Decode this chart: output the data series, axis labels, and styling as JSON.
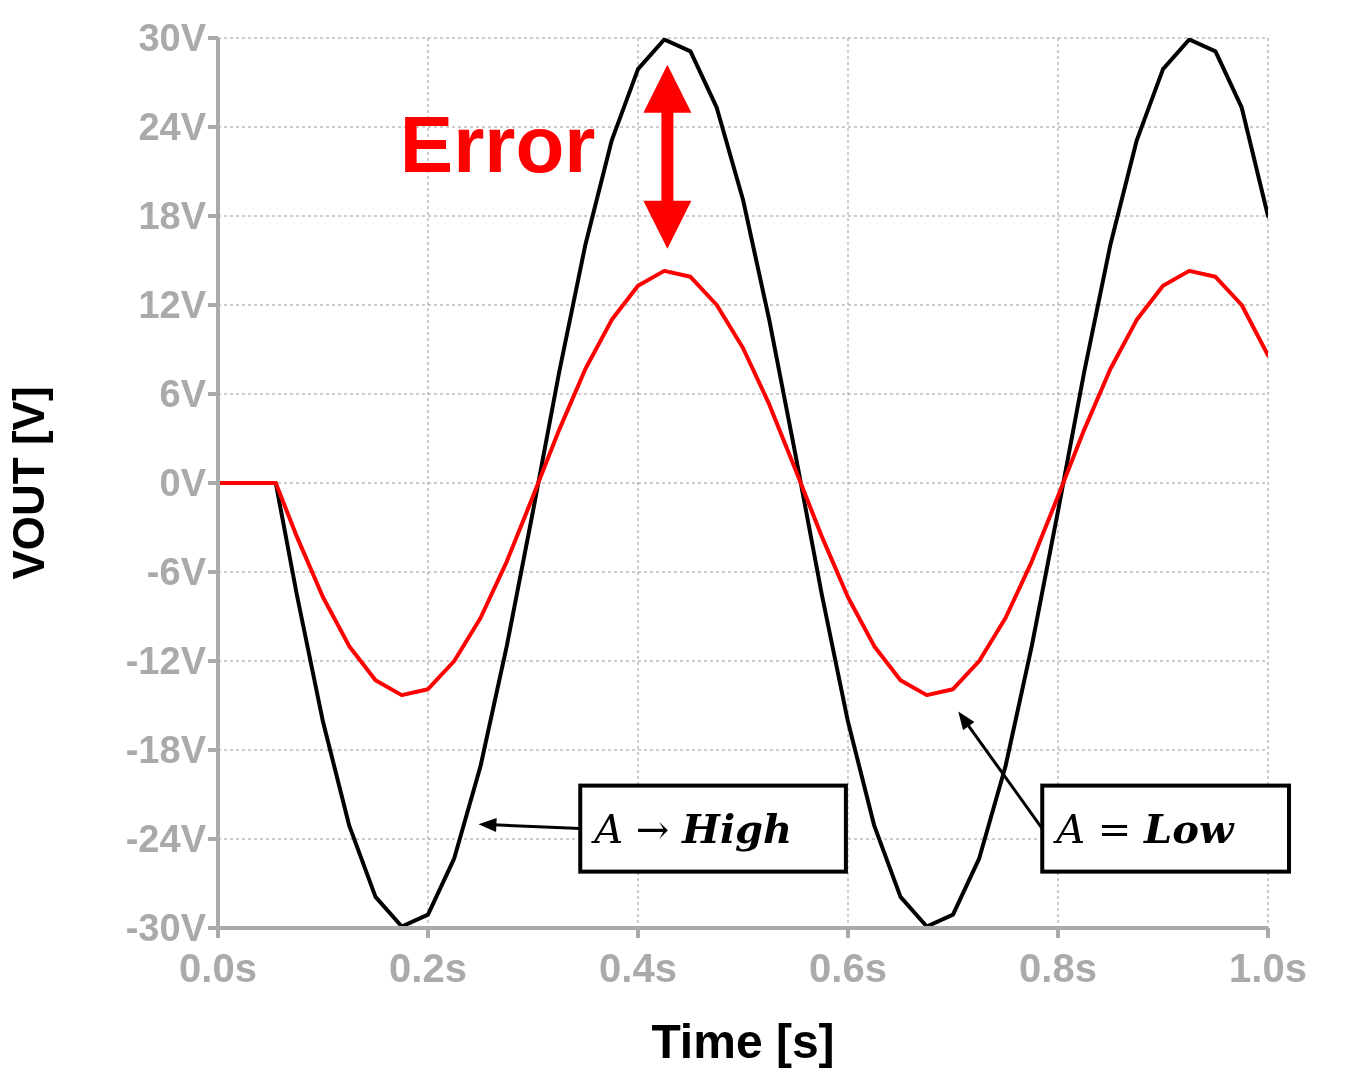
{
  "chart_data": {
    "type": "line",
    "xlabel": "Time [s]",
    "ylabel": "VOUT [V]",
    "x": [
      0,
      0.055,
      0.075,
      0.1,
      0.125,
      0.15,
      0.175,
      0.2,
      0.225,
      0.25,
      0.275,
      0.3,
      0.325,
      0.35,
      0.375,
      0.4,
      0.425,
      0.45,
      0.475,
      0.5,
      0.525,
      0.55,
      0.575,
      0.6,
      0.625,
      0.65,
      0.675,
      0.7,
      0.725,
      0.75,
      0.775,
      0.8,
      0.825,
      0.85,
      0.875,
      0.9,
      0.925,
      0.95,
      0.975,
      1.0
    ],
    "series": [
      {
        "color": "#000000",
        "values": [
          0,
          0,
          -7.5,
          -16.1,
          -23.1,
          -27.9,
          -29.9,
          -29.1,
          -25.3,
          -19.1,
          -11.0,
          -1.9,
          7.5,
          16.1,
          23.1,
          27.9,
          29.9,
          29.1,
          25.3,
          19.1,
          11.0,
          1.9,
          -7.5,
          -16.1,
          -23.1,
          -27.9,
          -29.9,
          -29.1,
          -25.3,
          -19.1,
          -11.0,
          -1.9,
          7.5,
          16.1,
          23.1,
          27.9,
          29.9,
          29.1,
          25.3,
          18.0
        ]
      },
      {
        "color": "#ff0000",
        "values": [
          0,
          0,
          -3.6,
          -7.7,
          -11.0,
          -13.3,
          -14.3,
          -13.9,
          -12.0,
          -9.1,
          -5.3,
          -0.9,
          3.6,
          7.7,
          11.0,
          13.3,
          14.3,
          13.9,
          12.0,
          9.1,
          5.3,
          0.9,
          -3.6,
          -7.7,
          -11.0,
          -13.3,
          -14.3,
          -13.9,
          -12.0,
          -9.1,
          -5.3,
          -0.9,
          3.6,
          7.7,
          11.0,
          13.3,
          14.3,
          13.9,
          12.0,
          8.6
        ]
      }
    ],
    "xlim": [
      0,
      1.0
    ],
    "xticks": [
      {
        "value": 0,
        "label": "0.0s"
      },
      {
        "value": 0.2,
        "label": "0.2s"
      },
      {
        "value": 0.4,
        "label": "0.4s"
      },
      {
        "value": 0.6,
        "label": "0.6s"
      },
      {
        "value": 0.8,
        "label": "0.8s"
      },
      {
        "value": 1.0,
        "label": "1.0s"
      }
    ],
    "ylim": [
      -30,
      30
    ],
    "yticks": [
      {
        "value": -30,
        "label": "-30V"
      },
      {
        "value": -24,
        "label": "-24V"
      },
      {
        "value": -18,
        "label": "-18V"
      },
      {
        "value": -12,
        "label": "-12V"
      },
      {
        "value": -6,
        "label": "-6V"
      },
      {
        "value": 0,
        "label": "0V"
      },
      {
        "value": 6,
        "label": "6V"
      },
      {
        "value": 12,
        "label": "12V"
      },
      {
        "value": 18,
        "label": "18V"
      },
      {
        "value": 24,
        "label": "24V"
      },
      {
        "value": 30,
        "label": "30V"
      }
    ],
    "grid": true,
    "line_style": "solid",
    "marker": "none",
    "annotations": [
      "Error",
      "A → High",
      "A = Low"
    ]
  }
}
